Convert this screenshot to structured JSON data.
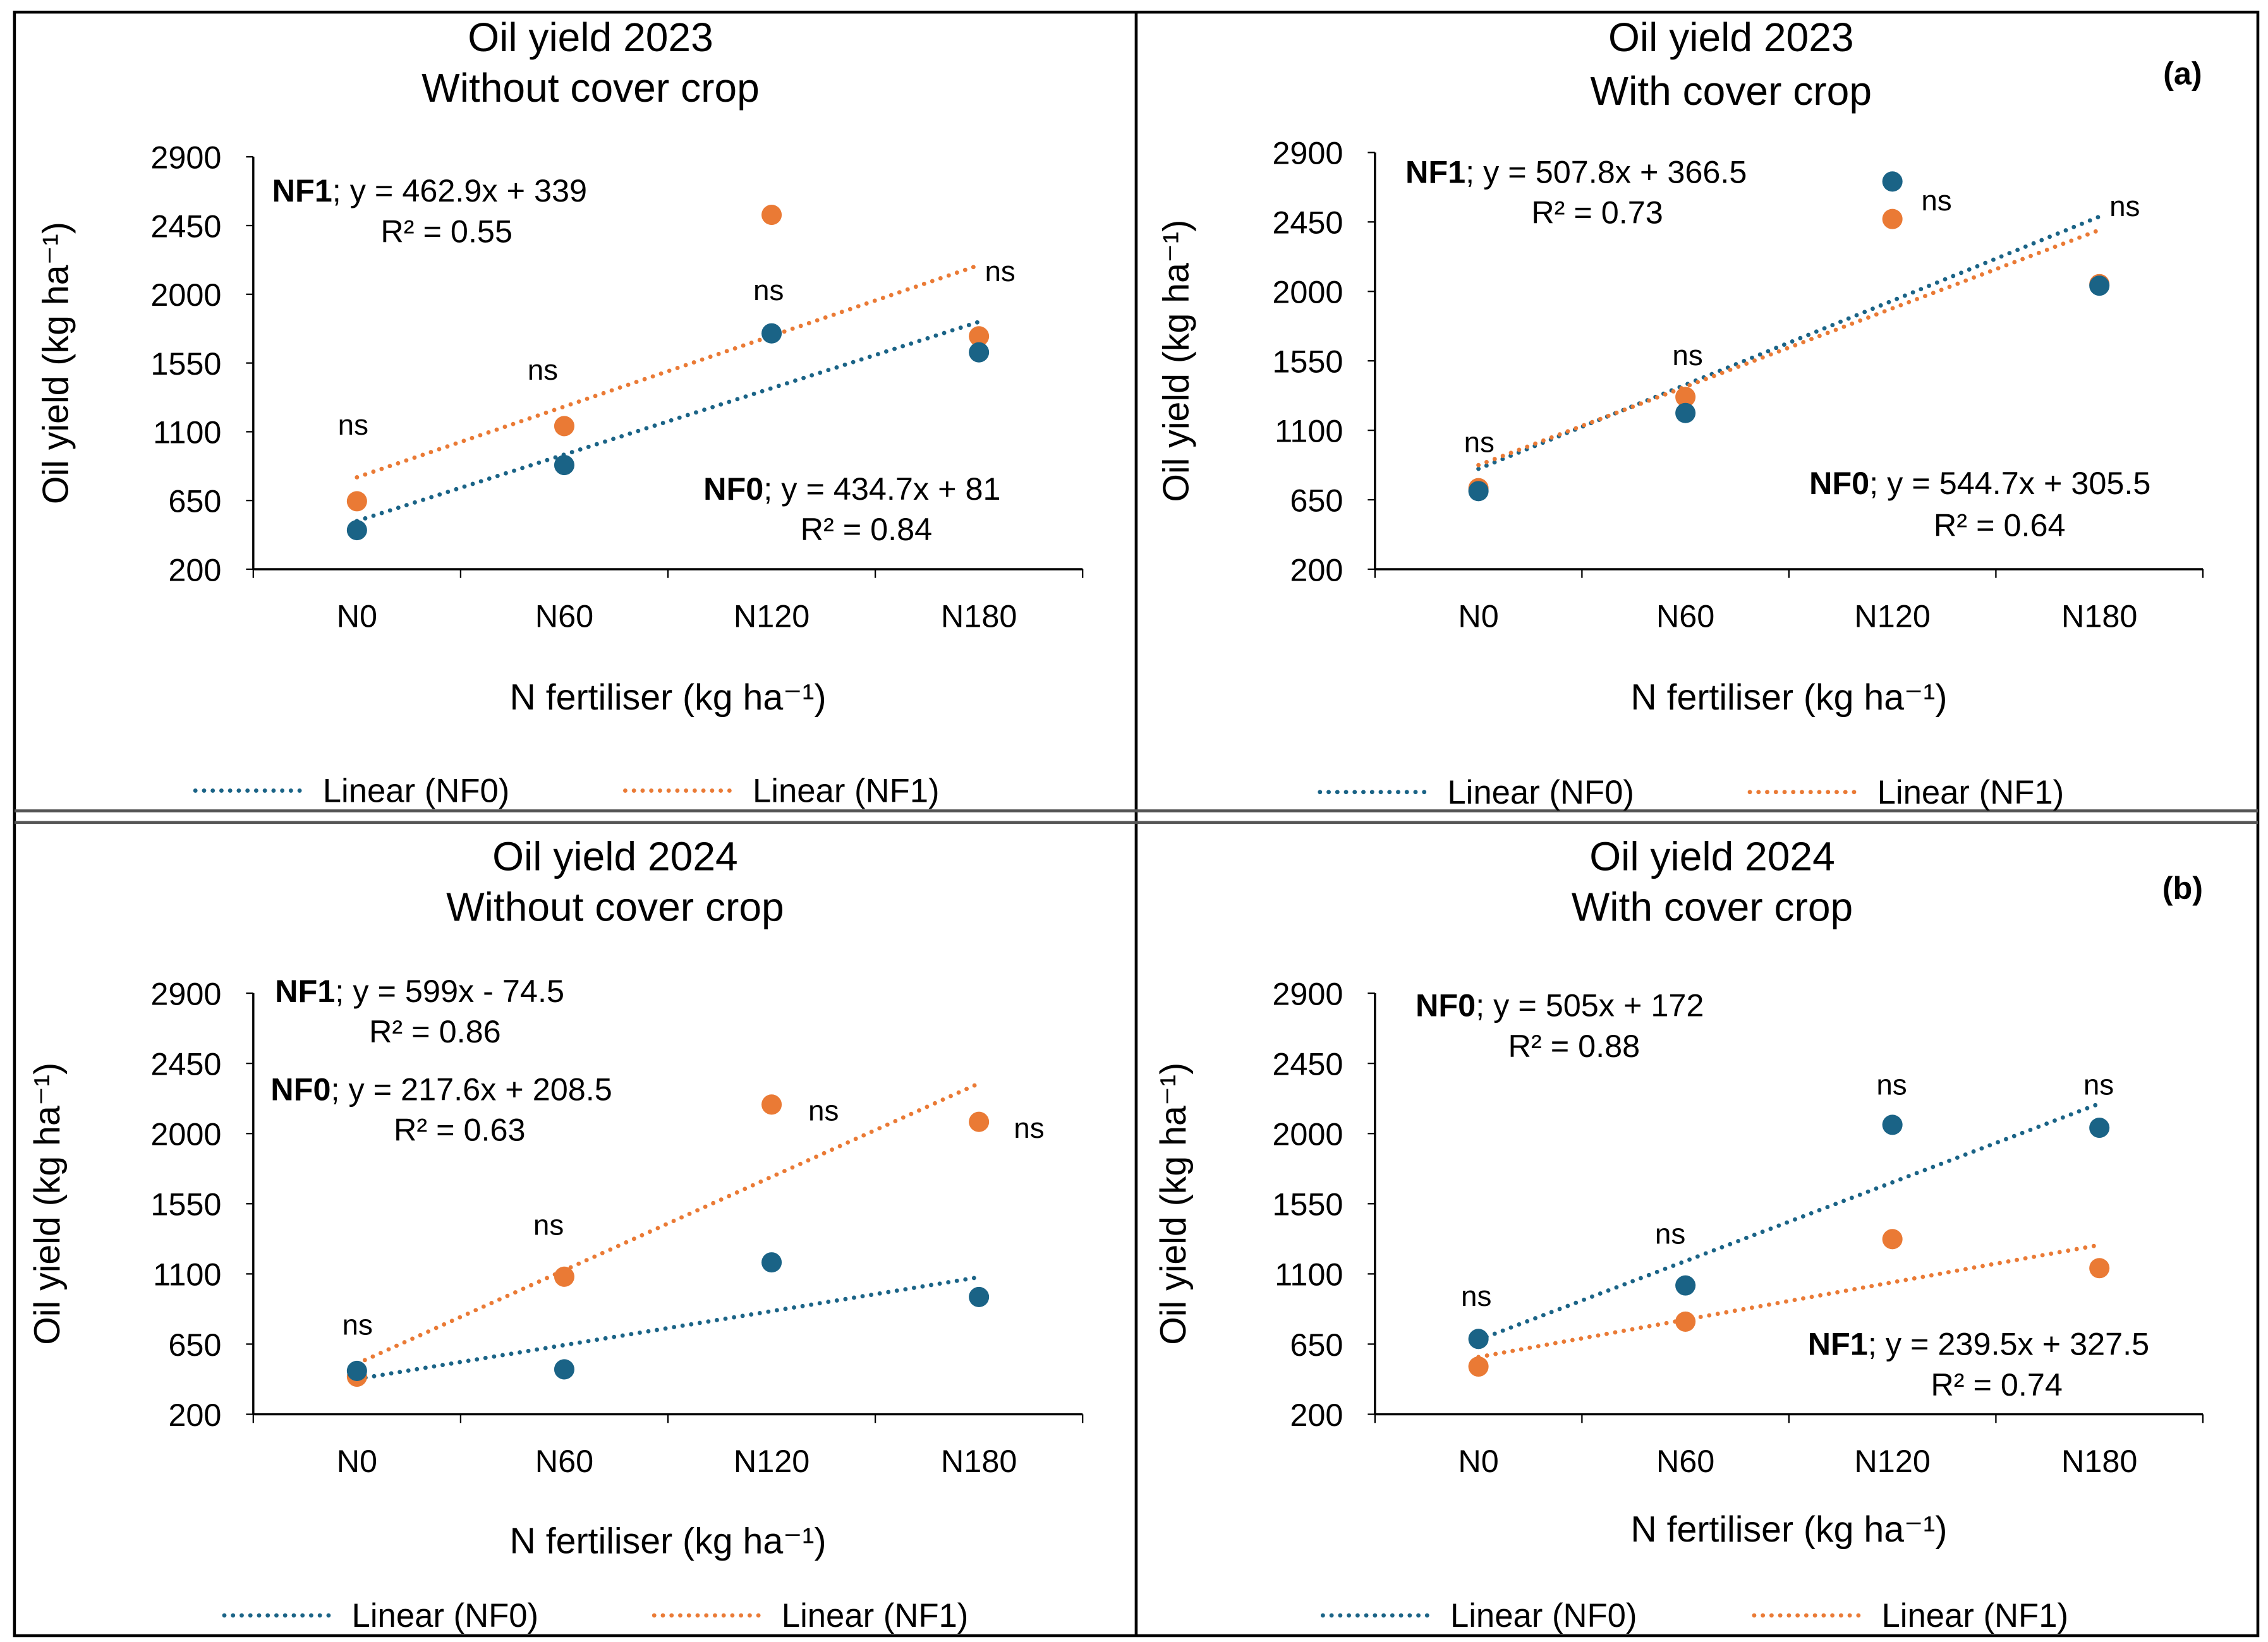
{
  "colors": {
    "NF0": "#1a6386",
    "NF1": "#ea7a35"
  },
  "chart_data": [
    {
      "type": "scatter",
      "title": [
        "Oil yield 2023",
        "Without cover crop"
      ],
      "panel_label": "",
      "xlabel": "N fertiliser (kg ha⁻¹)",
      "ylabel": "Oil yield (kg ha⁻¹)",
      "categories": [
        "N0",
        "N60",
        "N120",
        "N180"
      ],
      "yticks": [
        200,
        650,
        1100,
        1550,
        2000,
        2450,
        2900
      ],
      "ylim": [
        200,
        2900
      ],
      "series": [
        {
          "name": "NF0",
          "values": [
            456,
            882,
            1744,
            1620
          ],
          "trend": {
            "slope": 434.7,
            "intercept": 81
          },
          "equation": "; y = 434.7x + 81",
          "r2": "R² = 0.84"
        },
        {
          "name": "NF1",
          "values": [
            645,
            1137,
            2520,
            1725
          ],
          "trend": {
            "slope": 462.9,
            "intercept": 339
          },
          "equation": "; y = 462.9x + 339",
          "r2": "R² = 0.55"
        }
      ],
      "ns_labels": [
        "ns",
        "ns",
        "ns",
        "ns"
      ],
      "legend": [
        "Linear (NF0)",
        "Linear (NF1)"
      ]
    },
    {
      "type": "scatter",
      "title": [
        "Oil yield 2023",
        "With cover crop"
      ],
      "panel_label": "(a)",
      "xlabel": "N fertiliser (kg ha⁻¹)",
      "ylabel": "Oil yield (kg ha⁻¹)",
      "categories": [
        "N0",
        "N60",
        "N120",
        "N180"
      ],
      "yticks": [
        200,
        650,
        1100,
        1550,
        2000,
        2450,
        2900
      ],
      "ylim": [
        200,
        2900
      ],
      "series": [
        {
          "name": "NF0",
          "values": [
            706,
            1212,
            2712,
            2037
          ],
          "trend": {
            "slope": 544.7,
            "intercept": 305.5
          },
          "equation": "; y = 544.7x + 305.5",
          "r2": "R² = 0.64"
        },
        {
          "name": "NF1",
          "values": [
            725,
            1316,
            2469,
            2047
          ],
          "trend": {
            "slope": 507.8,
            "intercept": 366.5
          },
          "equation": "; y = 507.8x + 366.5",
          "r2": "R² = 0.73"
        }
      ],
      "ns_labels": [
        "ns",
        "ns",
        "ns",
        "ns"
      ],
      "legend": [
        "Linear (NF0)",
        "Linear (NF1)"
      ]
    },
    {
      "type": "scatter",
      "title": [
        "Oil yield 2024",
        "Without cover crop"
      ],
      "panel_label": "",
      "xlabel": "N fertiliser (kg ha⁻¹)",
      "ylabel": "Oil yield (kg ha⁻¹)",
      "categories": [
        "N0",
        "N60",
        "N120",
        "N180"
      ],
      "yticks": [
        200,
        650,
        1100,
        1550,
        2000,
        2450,
        2900
      ],
      "ylim": [
        200,
        2900
      ],
      "series": [
        {
          "name": "NF0",
          "values": [
            478,
            488,
            1174,
            952
          ],
          "trend": {
            "slope": 217.6,
            "intercept": 208.5
          },
          "equation": "; y = 217.6x + 208.5",
          "r2": "R² = 0.63"
        },
        {
          "name": "NF1",
          "values": [
            441,
            1082,
            2186,
            2075
          ],
          "trend": {
            "slope": 599,
            "intercept": -74.5
          },
          "equation": "; y = 599x - 74.5",
          "r2": "R² = 0.86"
        }
      ],
      "ns_labels": [
        "ns",
        "ns",
        "ns",
        "ns"
      ],
      "legend": [
        "Linear (NF0)",
        "Linear (NF1)"
      ]
    },
    {
      "type": "scatter",
      "title": [
        "Oil yield 2024",
        "With cover crop"
      ],
      "panel_label": "(b)",
      "xlabel": "N fertiliser (kg ha⁻¹)",
      "ylabel": "Oil yield (kg ha⁻¹)",
      "categories": [
        "N0",
        "N60",
        "N120",
        "N180"
      ],
      "yticks": [
        200,
        650,
        1100,
        1550,
        2000,
        2450,
        2900
      ],
      "ylim": [
        200,
        2900
      ],
      "series": [
        {
          "name": "NF0",
          "values": [
            683,
            1026,
            2056,
            2037
          ],
          "trend": {
            "slope": 505,
            "intercept": 172
          },
          "equation": "; y = 505x + 172",
          "r2": "R² = 0.88"
        },
        {
          "name": "NF1",
          "values": [
            506,
            794,
            1323,
            1137
          ],
          "trend": {
            "slope": 239.5,
            "intercept": 327.5
          },
          "equation": "; y = 239.5x + 327.5",
          "r2": "R² = 0.74"
        }
      ],
      "ns_labels": [
        "ns",
        "ns",
        "ns",
        "ns"
      ],
      "legend": [
        "Linear (NF0)",
        "Linear (NF1)"
      ]
    }
  ]
}
